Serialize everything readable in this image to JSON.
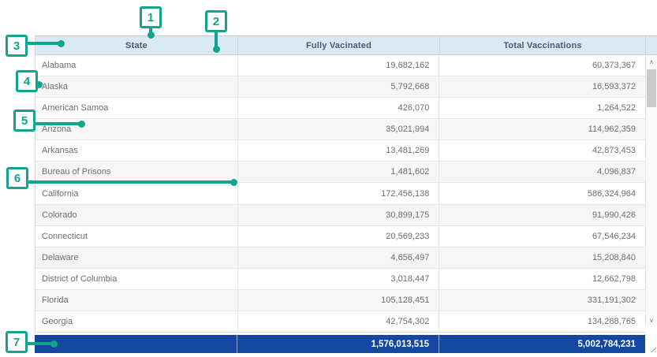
{
  "colors": {
    "callout_accent": "#10A58C",
    "header_bg": "#D9E9F8",
    "header_text": "#4A5A6B",
    "row_text": "#6E6E6E",
    "row_alt_bg": "#F6F6F6",
    "footer_bg": "#14489E",
    "footer_text": "#FFFFFF"
  },
  "table": {
    "columns": [
      "State",
      "Fully Vacinated",
      "Total Vaccinations"
    ],
    "rows": [
      {
        "state": "Alabama",
        "fully_vaccinated": "19,682,162",
        "total_vaccinations": "60,373,367"
      },
      {
        "state": "Alaska",
        "fully_vaccinated": "5,792,668",
        "total_vaccinations": "16,593,372"
      },
      {
        "state": "American Samoa",
        "fully_vaccinated": "426,070",
        "total_vaccinations": "1,264,522"
      },
      {
        "state": "Arizona",
        "fully_vaccinated": "35,021,994",
        "total_vaccinations": "114,962,359"
      },
      {
        "state": "Arkansas",
        "fully_vaccinated": "13,481,269",
        "total_vaccinations": "42,873,453"
      },
      {
        "state": "Bureau of Prisons",
        "fully_vaccinated": "1,481,602",
        "total_vaccinations": "4,096,837"
      },
      {
        "state": "California",
        "fully_vaccinated": "172,456,138",
        "total_vaccinations": "586,324,964"
      },
      {
        "state": "Colorado",
        "fully_vaccinated": "30,899,175",
        "total_vaccinations": "91,990,426"
      },
      {
        "state": "Connecticut",
        "fully_vaccinated": "20,569,233",
        "total_vaccinations": "67,546,234"
      },
      {
        "state": "Delaware",
        "fully_vaccinated": "4,656,497",
        "total_vaccinations": "15,208,840"
      },
      {
        "state": "District of Columbia",
        "fully_vaccinated": "3,018,447",
        "total_vaccinations": "12,662,798"
      },
      {
        "state": "Florida",
        "fully_vaccinated": "105,128,451",
        "total_vaccinations": "331,191,302"
      },
      {
        "state": "Georgia",
        "fully_vaccinated": "42,754,302",
        "total_vaccinations": "134,288,765"
      }
    ],
    "footer": {
      "fully_vaccinated_total": "1,576,013,515",
      "total_vaccinations_total": "5,002,784,231"
    }
  },
  "callouts": [
    "1",
    "2",
    "3",
    "4",
    "5",
    "6",
    "7"
  ],
  "scrollbar": {
    "up": "∧",
    "down": "∨"
  }
}
